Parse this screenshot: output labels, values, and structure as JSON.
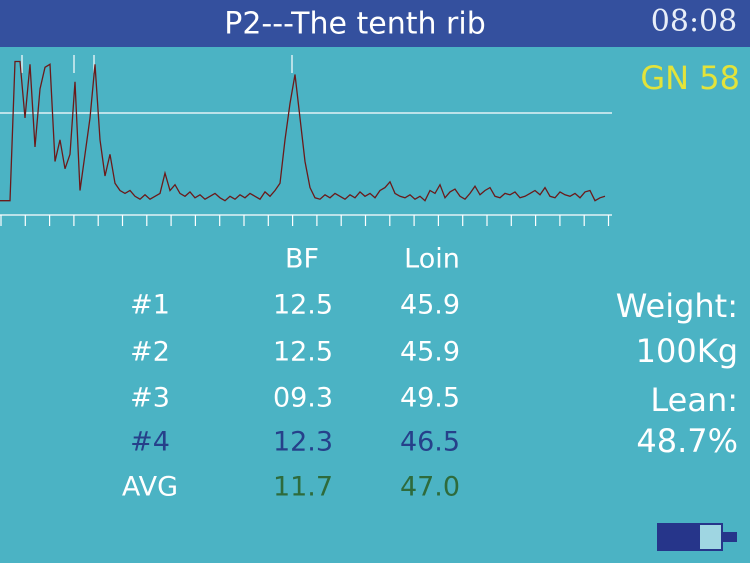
{
  "header": {
    "title": "P2---The tenth rib",
    "clock": "08:08"
  },
  "gn": "GN 58",
  "waveform": {
    "values": [
      3,
      3,
      3,
      99,
      99,
      60,
      97,
      40,
      80,
      95,
      97,
      30,
      45,
      25,
      35,
      85,
      10,
      35,
      60,
      97,
      45,
      20,
      35,
      15,
      10,
      8,
      10,
      6,
      4,
      7,
      4,
      6,
      8,
      22,
      10,
      14,
      8,
      6,
      9,
      5,
      7,
      4,
      6,
      8,
      5,
      3,
      6,
      4,
      7,
      5,
      8,
      6,
      4,
      9,
      6,
      10,
      15,
      45,
      70,
      90,
      60,
      30,
      12,
      5,
      4,
      7,
      5,
      8,
      6,
      4,
      7,
      5,
      9,
      6,
      8,
      5,
      10,
      12,
      16,
      8,
      6,
      5,
      7,
      4,
      6,
      3,
      10,
      8,
      14,
      5,
      9,
      11,
      6,
      4,
      8,
      13,
      7,
      10,
      12,
      6,
      5,
      8,
      7,
      9,
      5,
      6,
      8,
      10,
      7,
      12,
      6,
      5,
      9,
      7,
      6,
      8,
      5,
      9,
      10,
      3,
      5,
      6
    ]
  },
  "table": {
    "columns": [
      "BF",
      "Loin"
    ],
    "rows": [
      [
        "#1",
        "12.5",
        "45.9"
      ],
      [
        "#2",
        "12.5",
        "45.9"
      ],
      [
        "#3",
        "09.3",
        "49.5"
      ],
      [
        "#4",
        "12.3",
        "46.5"
      ],
      [
        "AVG",
        "11.7",
        "47.0"
      ]
    ]
  },
  "summary": {
    "weight_label": "Weight:",
    "weight": "100Kg",
    "lean_label": "Lean:",
    "lean": "48.7%"
  }
}
